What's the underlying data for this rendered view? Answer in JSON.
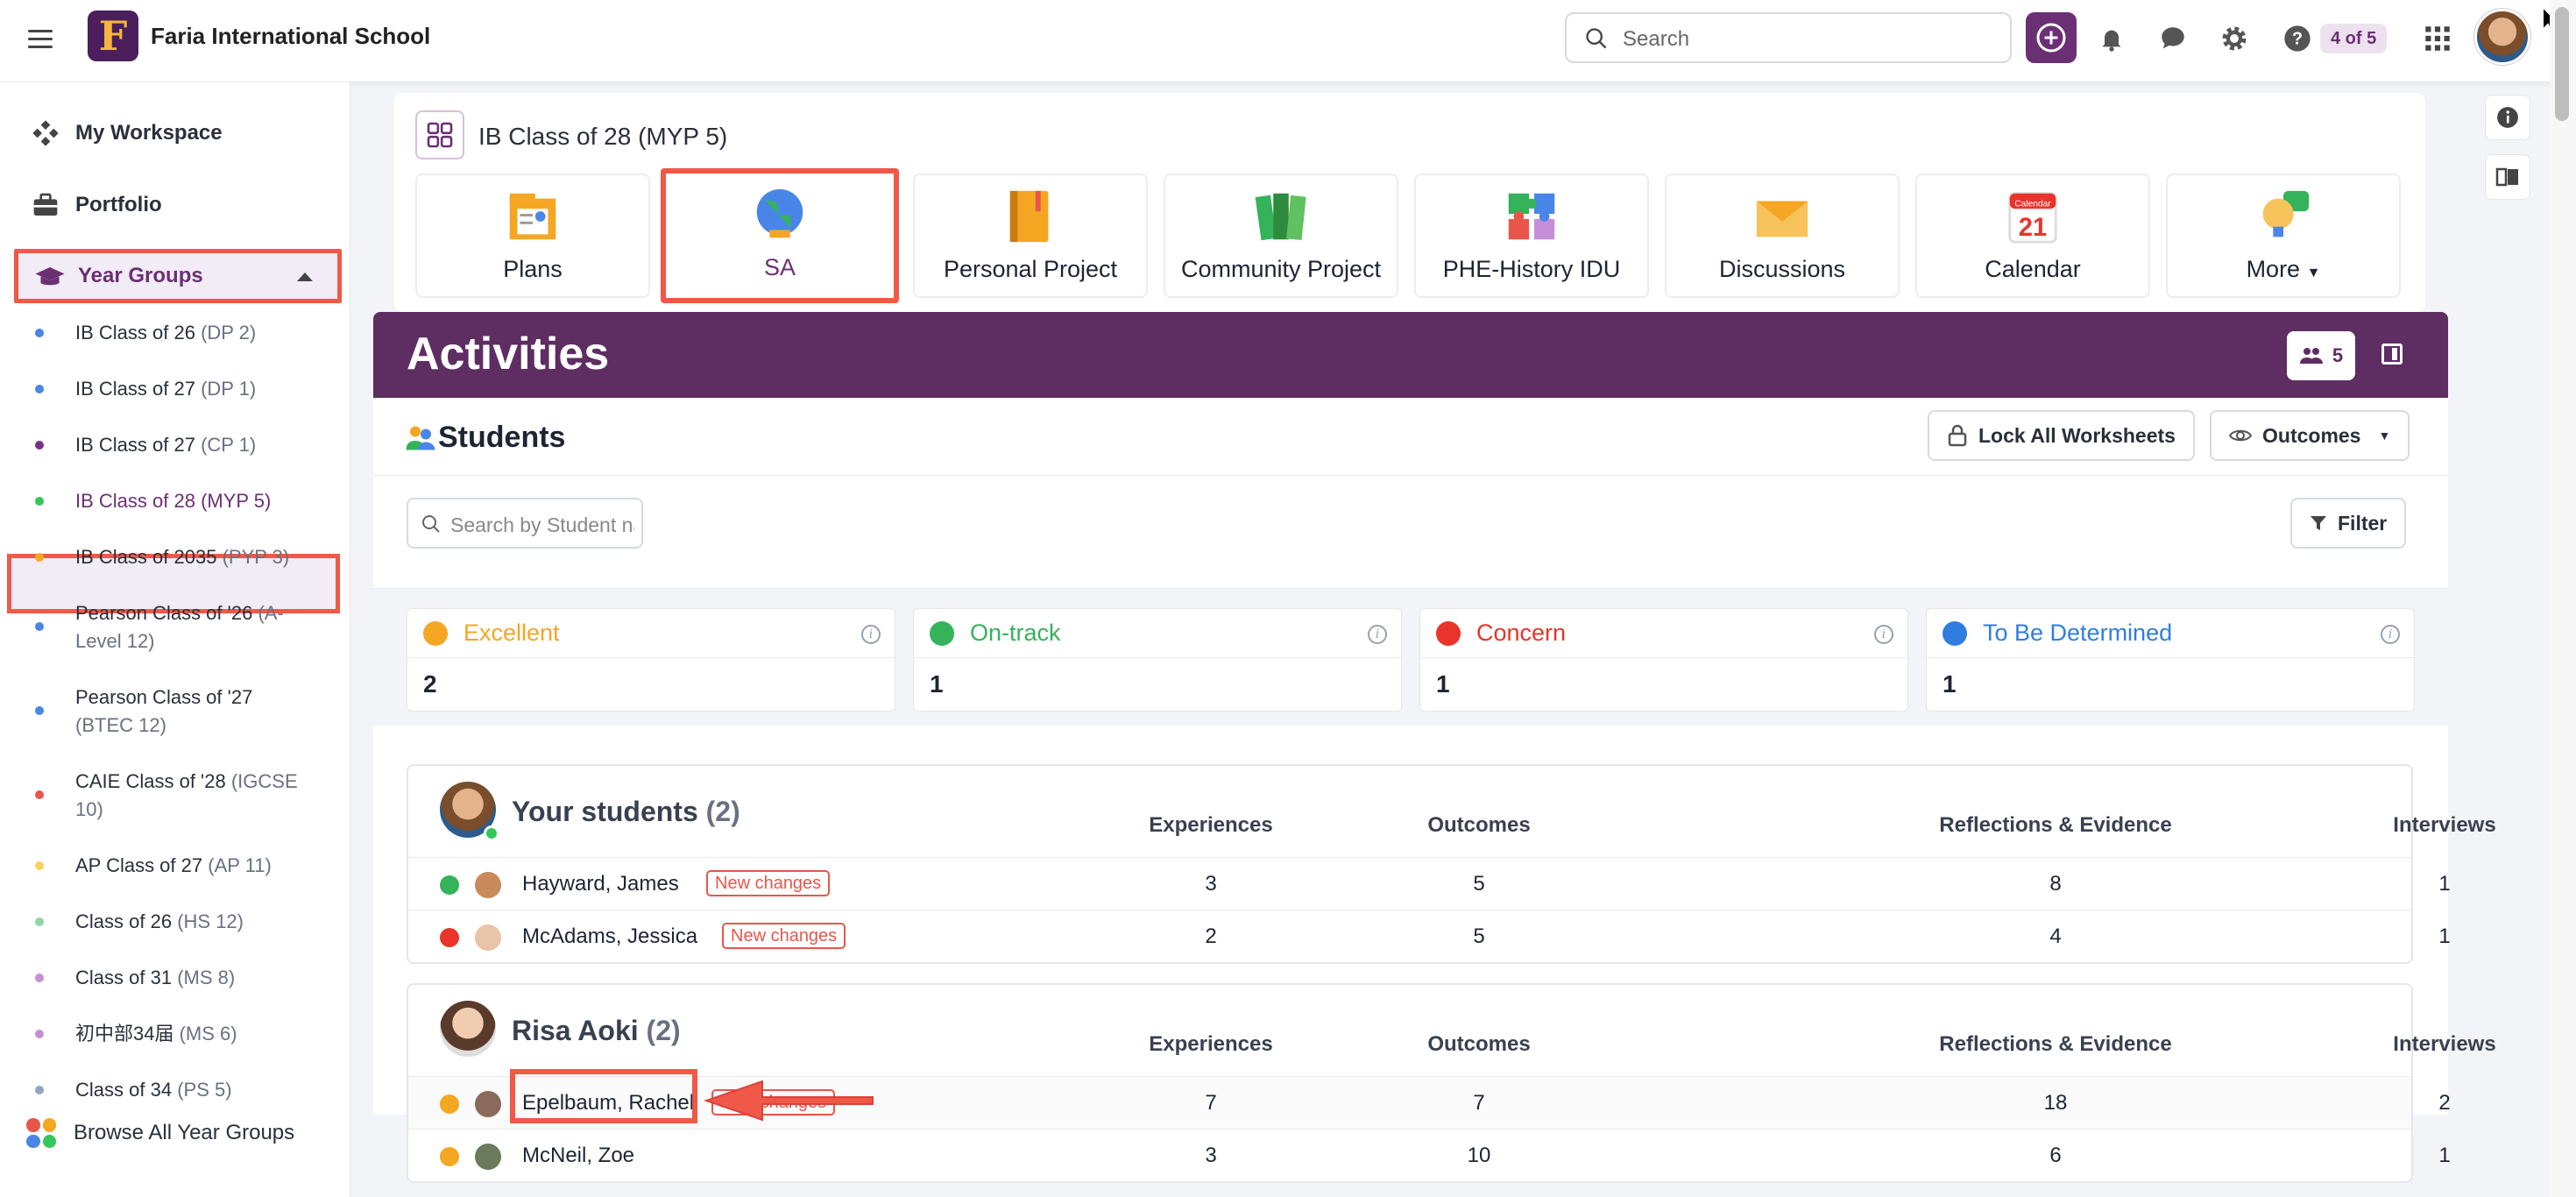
{
  "topbar": {
    "logo_letter": "F",
    "school_name": "Faria International School",
    "search_placeholder": "Search",
    "page_counter": "4 of 5"
  },
  "sidebar": {
    "workspace": "My Workspace",
    "portfolio": "Portfolio",
    "year_groups": "Year Groups",
    "items": [
      {
        "name": "IB Class of 26",
        "sub": "(DP 2)",
        "color": "#4a86e8"
      },
      {
        "name": "IB Class of 27",
        "sub": "(DP 1)",
        "color": "#4a86e8"
      },
      {
        "name": "IB Class of 27",
        "sub": "(CP 1)",
        "color": "#7b2f8a"
      },
      {
        "name": "IB Class of 28",
        "sub": "(MYP 5)",
        "color": "#34c759"
      },
      {
        "name": "IB Class of 2035",
        "sub": "(PYP 3)",
        "color": "#f5a623"
      },
      {
        "name": "Pearson Class of '26",
        "sub": "(A-Level 12)",
        "color": "#4a86e8"
      },
      {
        "name": "Pearson Class of '27",
        "sub": "(BTEC 12)",
        "color": "#4a86e8"
      },
      {
        "name": "CAIE Class of '28",
        "sub": "(IGCSE 10)",
        "color": "#e8564a"
      },
      {
        "name": "AP Class of 27",
        "sub": "(AP 11)",
        "color": "#f7d35a"
      },
      {
        "name": "Class of 26",
        "sub": "(HS 12)",
        "color": "#8fd6a6"
      },
      {
        "name": "Class of 31",
        "sub": "(MS 8)",
        "color": "#c58fd8"
      },
      {
        "name": "初中部34届",
        "sub": "(MS 6)",
        "color": "#c58fd8"
      },
      {
        "name": "Class of 34",
        "sub": "(PS 5)",
        "color": "#8fa6c8"
      }
    ],
    "browse": "Browse All Year Groups"
  },
  "classbar": {
    "title": "IB Class of 28 (MYP 5)",
    "tiles": [
      {
        "label": "Plans",
        "icon": "plans-icon"
      },
      {
        "label": "SA",
        "icon": "globe-icon"
      },
      {
        "label": "Personal Project",
        "icon": "notebook-icon"
      },
      {
        "label": "Community Project",
        "icon": "books-icon"
      },
      {
        "label": "PHE-History IDU",
        "icon": "puzzle-icon"
      },
      {
        "label": "Discussions",
        "icon": "envelope-icon"
      },
      {
        "label": "Calendar",
        "icon": "calendar-icon",
        "day": "21",
        "month": "Calendar"
      },
      {
        "label": "More",
        "icon": "lightbulb-icon"
      }
    ]
  },
  "activities": {
    "title": "Activities",
    "member_count": "5"
  },
  "students_panel": {
    "title": "Students",
    "lock_button": "Lock All Worksheets",
    "outcomes_button": "Outcomes",
    "search_placeholder": "Search by Student name",
    "filter_button": "Filter"
  },
  "stats": [
    {
      "label": "Excellent",
      "value": "2",
      "color": "#f5a623"
    },
    {
      "label": "On-track",
      "value": "1",
      "color": "#34b35a"
    },
    {
      "label": "Concern",
      "value": "1",
      "color": "#e8342a"
    },
    {
      "label": "To Be Determined",
      "value": "1",
      "color": "#2f7de1"
    }
  ],
  "columns": [
    "Experiences",
    "Outcomes",
    "Reflections & Evidence",
    "Interviews"
  ],
  "groups": [
    {
      "name": "Your students",
      "count": "(2)",
      "rows": [
        {
          "name": "Hayward, James",
          "badge": "New changes",
          "status_color": "#34b35a",
          "values": [
            "3",
            "5",
            "8",
            "1"
          ]
        },
        {
          "name": "McAdams, Jessica",
          "badge": "New changes",
          "status_color": "#e8342a",
          "values": [
            "2",
            "5",
            "4",
            "1"
          ]
        }
      ]
    },
    {
      "name": "Risa Aoki",
      "count": "(2)",
      "rows": [
        {
          "name": "Epelbaum, Rachel",
          "badge": "New changes",
          "status_color": "#f5a623",
          "values": [
            "7",
            "7",
            "18",
            "2"
          ]
        },
        {
          "name": "McNeil, Zoe",
          "badge": "",
          "status_color": "#f5a623",
          "values": [
            "3",
            "10",
            "6",
            "1"
          ]
        }
      ]
    }
  ]
}
